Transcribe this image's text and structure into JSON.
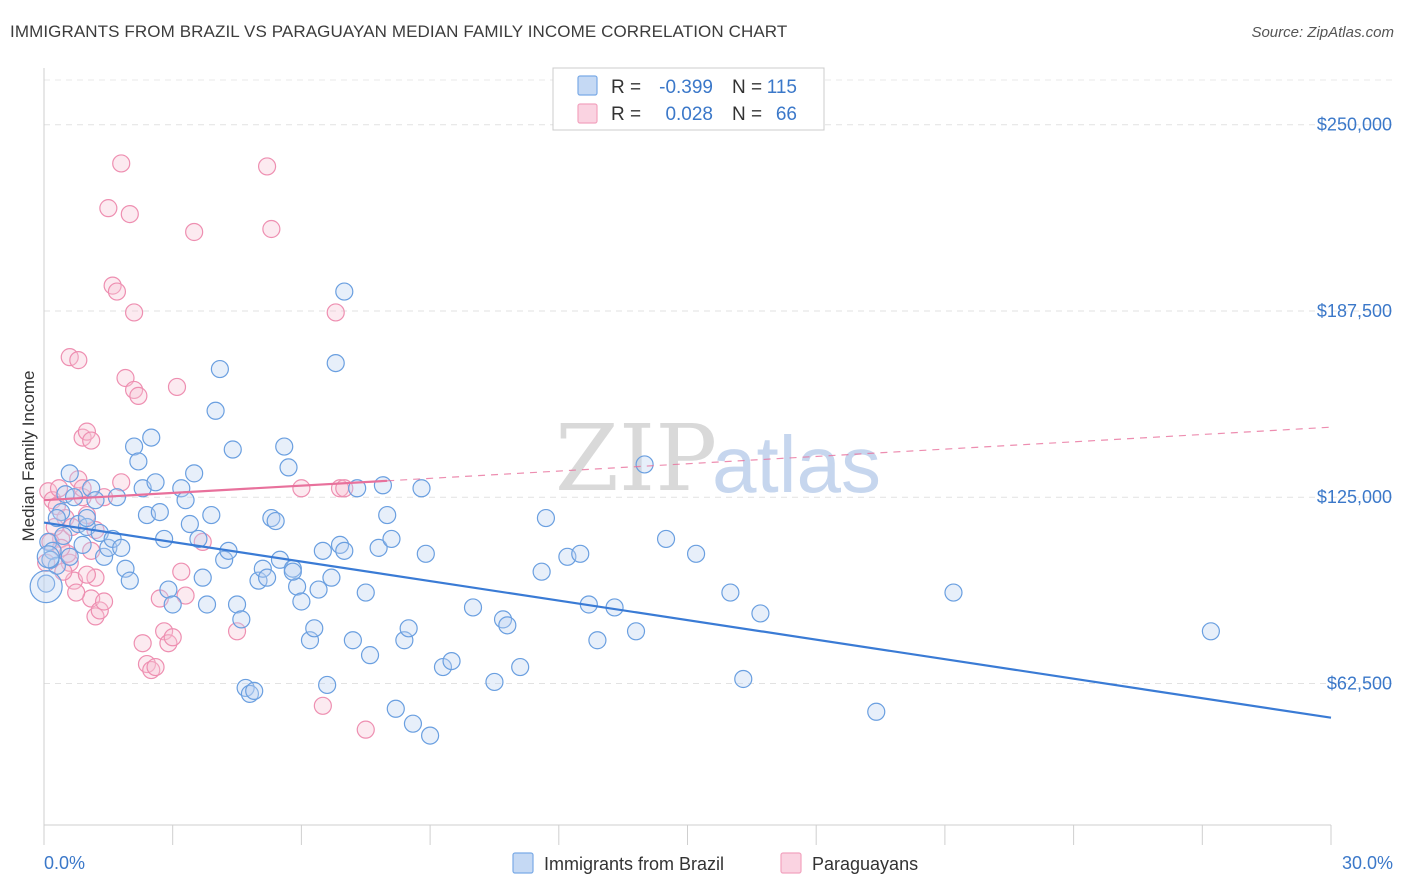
{
  "title": "IMMIGRANTS FROM BRAZIL VS PARAGUAYAN MEDIAN FAMILY INCOME CORRELATION CHART",
  "source": "Source: ZipAtlas.com",
  "watermark": {
    "part1": "ZIP",
    "part2": "atlas"
  },
  "legend": {
    "r_label": "R =",
    "n_label": "N =",
    "rows": [
      {
        "r": "-0.399",
        "n": "115",
        "color": "#7aaae6"
      },
      {
        "r": "0.028",
        "n": "66",
        "color": "#f2a3bf"
      }
    ]
  },
  "colors": {
    "blue": "#3a7bd5",
    "pink": "#e8719c",
    "tick_label": "#3b78c9"
  },
  "chart_data": {
    "type": "scatter",
    "ylabel": "Median Family Income",
    "xlim": [
      0,
      30
    ],
    "ylim": [
      15000,
      265000
    ],
    "y_ticks": [
      62500,
      125000,
      187500,
      250000
    ],
    "y_tick_labels": [
      "$62,500",
      "$125,000",
      "$187,500",
      "$250,000"
    ],
    "x_tick_labels": [
      "0.0%",
      "30.0%"
    ],
    "grid": "horizontal dashed",
    "series": [
      {
        "name": "Immigrants from Brazil",
        "color": "#7aaae6",
        "trend": {
          "x": [
            0,
            30
          ],
          "y": [
            116500,
            51000
          ],
          "style": "solid"
        },
        "points": [
          [
            0.1,
            110
          ],
          [
            0.2,
            107
          ],
          [
            0.3,
            102
          ],
          [
            0.4,
            120
          ],
          [
            0.5,
            126
          ],
          [
            0.6,
            133
          ],
          [
            0.7,
            125
          ],
          [
            0.8,
            116
          ],
          [
            0.9,
            109
          ],
          [
            1.0,
            115
          ],
          [
            1.1,
            128
          ],
          [
            1.2,
            124
          ],
          [
            1.3,
            113
          ],
          [
            1.4,
            105
          ],
          [
            1.5,
            108
          ],
          [
            1.6,
            111
          ],
          [
            1.7,
            125
          ],
          [
            1.8,
            108
          ],
          [
            1.9,
            101
          ],
          [
            2.0,
            97
          ],
          [
            2.1,
            142
          ],
          [
            2.2,
            137
          ],
          [
            2.3,
            128
          ],
          [
            2.4,
            119
          ],
          [
            2.5,
            145
          ],
          [
            2.6,
            130
          ],
          [
            2.7,
            120
          ],
          [
            2.8,
            111
          ],
          [
            2.9,
            94
          ],
          [
            3.0,
            89
          ],
          [
            3.2,
            128
          ],
          [
            3.3,
            124
          ],
          [
            3.4,
            116
          ],
          [
            3.5,
            133
          ],
          [
            3.6,
            111
          ],
          [
            3.7,
            98
          ],
          [
            3.8,
            89
          ],
          [
            3.9,
            119
          ],
          [
            4.0,
            154
          ],
          [
            4.1,
            168
          ],
          [
            4.2,
            104
          ],
          [
            4.3,
            107
          ],
          [
            4.4,
            141
          ],
          [
            4.5,
            89
          ],
          [
            4.6,
            84
          ],
          [
            4.7,
            61
          ],
          [
            4.8,
            59
          ],
          [
            4.9,
            60
          ],
          [
            5.0,
            97
          ],
          [
            5.1,
            101
          ],
          [
            5.2,
            98
          ],
          [
            5.3,
            118
          ],
          [
            5.4,
            117
          ],
          [
            5.5,
            104
          ],
          [
            5.6,
            142
          ],
          [
            5.7,
            135
          ],
          [
            5.8,
            101
          ],
          [
            5.9,
            95
          ],
          [
            6.0,
            90
          ],
          [
            6.2,
            77
          ],
          [
            6.3,
            81
          ],
          [
            6.4,
            94
          ],
          [
            6.5,
            107
          ],
          [
            6.6,
            62
          ],
          [
            6.7,
            98
          ],
          [
            6.8,
            170
          ],
          [
            6.9,
            109
          ],
          [
            7.0,
            107
          ],
          [
            7.2,
            77
          ],
          [
            7.3,
            128
          ],
          [
            7.5,
            93
          ],
          [
            7.6,
            72
          ],
          [
            7.8,
            108
          ],
          [
            7.9,
            129
          ],
          [
            8.0,
            119
          ],
          [
            8.1,
            111
          ],
          [
            8.2,
            54
          ],
          [
            8.4,
            77
          ],
          [
            8.5,
            81
          ],
          [
            8.6,
            49
          ],
          [
            8.8,
            128
          ],
          [
            8.9,
            106
          ],
          [
            9.0,
            45
          ],
          [
            9.3,
            68
          ],
          [
            9.5,
            70
          ],
          [
            10.0,
            88
          ],
          [
            10.5,
            63
          ],
          [
            10.7,
            84
          ],
          [
            10.8,
            82
          ],
          [
            11.1,
            68
          ],
          [
            11.6,
            100
          ],
          [
            11.7,
            118
          ],
          [
            12.2,
            105
          ],
          [
            12.5,
            106
          ],
          [
            12.7,
            89
          ],
          [
            12.9,
            77
          ],
          [
            13.3,
            88
          ],
          [
            13.8,
            80
          ],
          [
            14.0,
            136
          ],
          [
            14.5,
            111
          ],
          [
            15.2,
            106
          ],
          [
            16.0,
            93
          ],
          [
            16.3,
            64
          ],
          [
            16.7,
            86
          ],
          [
            19.4,
            53
          ],
          [
            21.2,
            93
          ],
          [
            27.2,
            80
          ],
          [
            0.05,
            96
          ],
          [
            0.15,
            104
          ],
          [
            0.3,
            118
          ],
          [
            0.45,
            112
          ],
          [
            0.6,
            105
          ],
          [
            1.0,
            118
          ],
          [
            7.0,
            194
          ],
          [
            5.8,
            100
          ]
        ]
      },
      {
        "name": "Paraguayans",
        "color": "#f2a3bf",
        "trend": {
          "x": [
            0,
            8
          ],
          "y": [
            124000,
            130500
          ],
          "style": "solid",
          "extension": {
            "x": [
              8,
              30
            ],
            "y": [
              130500,
              148500
            ],
            "style": "dashed"
          }
        },
        "points": [
          [
            0.1,
            127
          ],
          [
            0.2,
            124
          ],
          [
            0.3,
            122
          ],
          [
            0.4,
            111
          ],
          [
            0.5,
            118
          ],
          [
            0.6,
            103
          ],
          [
            0.7,
            97
          ],
          [
            0.8,
            131
          ],
          [
            0.9,
            125
          ],
          [
            1.0,
            119
          ],
          [
            1.1,
            107
          ],
          [
            1.2,
            98
          ],
          [
            0.6,
            172
          ],
          [
            0.8,
            171
          ],
          [
            0.9,
            145
          ],
          [
            1.0,
            147
          ],
          [
            1.1,
            144
          ],
          [
            1.0,
            99
          ],
          [
            1.1,
            91
          ],
          [
            1.2,
            85
          ],
          [
            1.3,
            87
          ],
          [
            1.4,
            90
          ],
          [
            1.4,
            125
          ],
          [
            1.5,
            222
          ],
          [
            1.6,
            196
          ],
          [
            1.7,
            194
          ],
          [
            1.8,
            130
          ],
          [
            1.9,
            165
          ],
          [
            2.0,
            220
          ],
          [
            2.1,
            161
          ],
          [
            2.2,
            159
          ],
          [
            2.3,
            76
          ],
          [
            2.4,
            69
          ],
          [
            2.5,
            67
          ],
          [
            2.6,
            68
          ],
          [
            2.7,
            91
          ],
          [
            2.8,
            80
          ],
          [
            2.9,
            76
          ],
          [
            3.0,
            78
          ],
          [
            3.1,
            162
          ],
          [
            3.2,
            100
          ],
          [
            3.3,
            92
          ],
          [
            3.5,
            214
          ],
          [
            3.7,
            110
          ],
          [
            4.5,
            80
          ],
          [
            5.2,
            236
          ],
          [
            5.3,
            215
          ],
          [
            6.0,
            128
          ],
          [
            6.5,
            55
          ],
          [
            6.8,
            187
          ],
          [
            6.9,
            128
          ],
          [
            7.0,
            128
          ],
          [
            7.5,
            47
          ],
          [
            0.05,
            103
          ],
          [
            0.15,
            110
          ],
          [
            0.25,
            115
          ],
          [
            0.35,
            128
          ],
          [
            0.45,
            100
          ],
          [
            0.55,
            106
          ],
          [
            0.65,
            115
          ],
          [
            0.75,
            93
          ],
          [
            1.8,
            237
          ],
          [
            2.1,
            187
          ],
          [
            0.4,
            108
          ],
          [
            0.9,
            128
          ],
          [
            1.2,
            114
          ]
        ]
      }
    ]
  }
}
